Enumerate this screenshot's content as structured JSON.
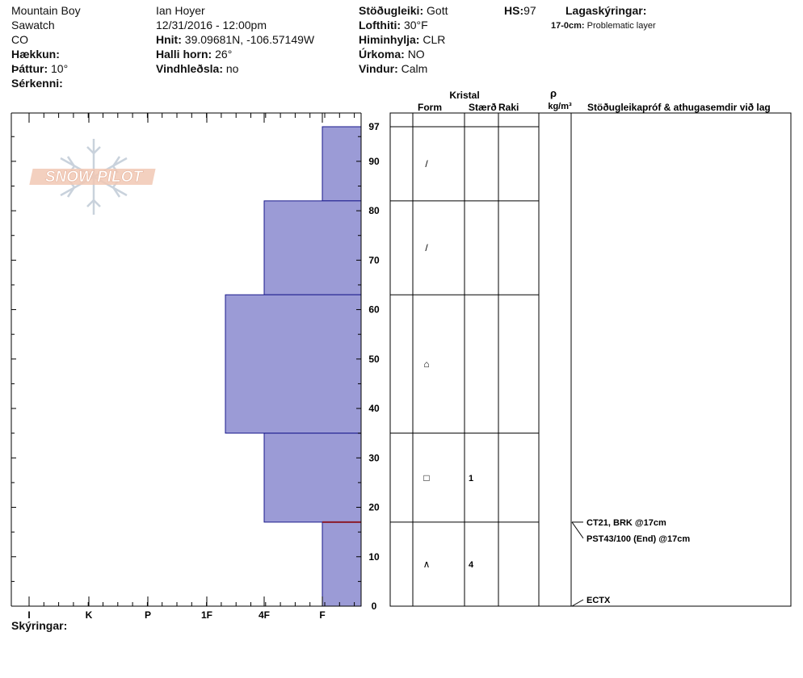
{
  "header": {
    "location": "Mountain Boy",
    "range": "Sawatch",
    "state": "CO",
    "elevation_label": "Hækkun:",
    "aspect_label": "Þáttur:",
    "aspect_value": "10°",
    "features_label": "Sérkenni:",
    "observer": "Ian Hoyer",
    "datetime": "12/31/2016 - 12:00pm",
    "coords_label": "Hnit:",
    "coords_value": "39.09681N, -106.57149W",
    "slope_label": "Halli horn:",
    "slope_value": "26°",
    "wind_loading_label": "Vindhleðsla:",
    "wind_loading_value": "no",
    "stability_label": "Stöðugleiki:",
    "stability_value": "Gott",
    "air_temp_label": "Lofthiti:",
    "air_temp_value": "30°F",
    "sky_label": "Himinhylja:",
    "sky_value": "CLR",
    "precip_label": "Úrkoma:",
    "precip_value": "NO",
    "wind_label": "Vindur:",
    "wind_value": "Calm",
    "hs_label": "HS:",
    "hs_value": "97",
    "layer_notes_label": "Lagaskýringar:",
    "layer_note_depth": "17-0cm:",
    "layer_note_text": "Problematic layer"
  },
  "logo": {
    "text": "SNOW PILOT"
  },
  "table": {
    "crystal_header": "Kristal",
    "form_header": "Form",
    "size_header": "Stærð",
    "moisture_header": "Raki",
    "density_symbol": "ρ",
    "density_unit": "kg/m³",
    "tests_header": "Stöðugleikapróf & athugasemdir við lag",
    "layers": [
      {
        "top": 97,
        "bottom": 82,
        "form": "/",
        "size": ""
      },
      {
        "top": 82,
        "bottom": 63,
        "form": "/",
        "size": ""
      },
      {
        "top": 63,
        "bottom": 35,
        "form": "⌂",
        "size": ""
      },
      {
        "top": 35,
        "bottom": 17,
        "form": "□",
        "size": "1"
      },
      {
        "top": 17,
        "bottom": 0,
        "form": "∧",
        "size": "4"
      }
    ],
    "tests": [
      {
        "depth": 17,
        "text": "CT21, BRK @17cm"
      },
      {
        "depth": 17,
        "text": "PST43/100 (End) @17cm"
      },
      {
        "depth": 0,
        "text": "ECTX"
      }
    ]
  },
  "footer": {
    "notes_label": "Skýringar:"
  },
  "colors": {
    "layer_fill": "#9b9bd6",
    "layer_stroke": "#1a1a8c",
    "weak_layer": "#8b1a2a"
  },
  "chart_data": {
    "type": "bar",
    "title": "",
    "xlabel": "",
    "ylabel": "",
    "hardness_scale": [
      "I",
      "K",
      "P",
      "1F",
      "4F",
      "F"
    ],
    "ylim": [
      0,
      97
    ],
    "y_ticks": [
      0,
      10,
      20,
      30,
      40,
      50,
      60,
      70,
      80,
      90,
      97
    ],
    "layers": [
      {
        "top": 97,
        "bottom": 82,
        "hardness": "F"
      },
      {
        "top": 82,
        "bottom": 63,
        "hardness": "4F"
      },
      {
        "top": 63,
        "bottom": 35,
        "hardness": "1F-"
      },
      {
        "top": 35,
        "bottom": 17,
        "hardness": "4F"
      },
      {
        "top": 17,
        "bottom": 0,
        "hardness": "F"
      }
    ],
    "weak_layer_depth": 17
  }
}
